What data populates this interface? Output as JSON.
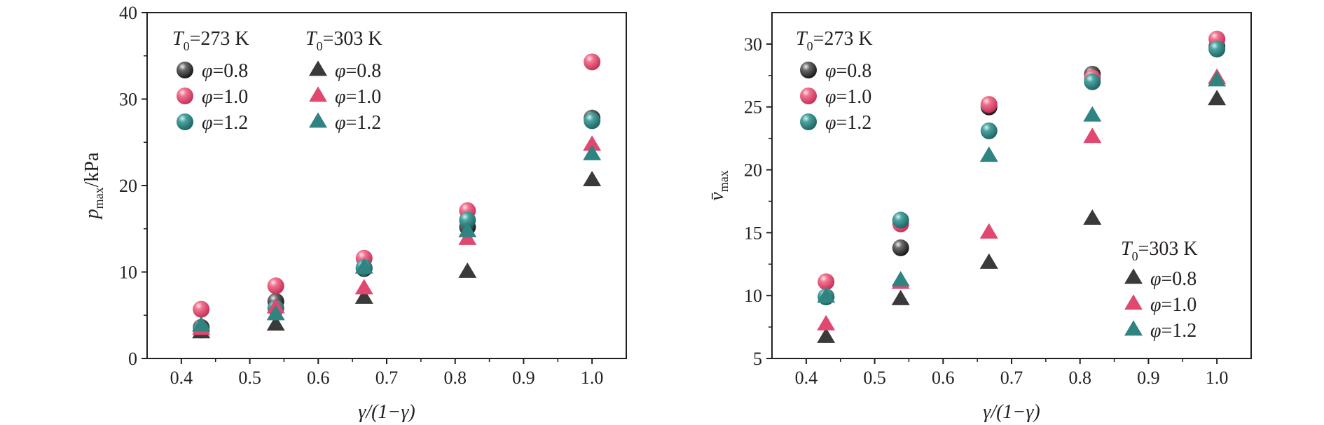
{
  "chart_data": [
    {
      "type": "scatter",
      "xlabel": "γ/(1−γ)",
      "ylabel_main": "p",
      "ylabel_sub": "max",
      "ylabel_rest": "/kPa",
      "xlim": [
        0.35,
        1.05
      ],
      "ylim": [
        0,
        40
      ],
      "xticks": [
        "0.4",
        "0.5",
        "0.6",
        "0.7",
        "0.8",
        "0.9",
        "1.0"
      ],
      "yticks": [
        "0",
        "10",
        "20",
        "30",
        "40"
      ],
      "legend_t273": {
        "T_main": "T",
        "T_sub": "0",
        "T_rest": "=273 K"
      },
      "legend_t303": {
        "T_main": "T",
        "T_sub": "0",
        "T_rest": "=303 K"
      },
      "x": [
        0.429,
        0.538,
        0.667,
        0.818,
        1.0
      ],
      "series": [
        {
          "name": "φ=0.8",
          "group": "273 K",
          "marker": "circle",
          "color": "#2b2b2b",
          "values": [
            3.6,
            6.6,
            10.4,
            15.2,
            27.8
          ]
        },
        {
          "name": "φ=1.0",
          "group": "273 K",
          "marker": "circle",
          "color": "#e0486f",
          "values": [
            5.7,
            8.4,
            11.6,
            17.1,
            34.3
          ]
        },
        {
          "name": "φ=1.2",
          "group": "273 K",
          "marker": "circle",
          "color": "#2f8482",
          "values": [
            3.3,
            5.8,
            10.5,
            16.0,
            27.5
          ]
        },
        {
          "name": "φ=0.8",
          "group": "303 K",
          "marker": "triangle",
          "color": "#3a3a3a",
          "values": [
            3.0,
            3.9,
            7.0,
            10.0,
            20.6
          ]
        },
        {
          "name": "φ=1.0",
          "group": "303 K",
          "marker": "triangle",
          "color": "#e0486f",
          "values": [
            3.4,
            5.9,
            8.1,
            13.8,
            24.7
          ]
        },
        {
          "name": "φ=1.2",
          "group": "303 K",
          "marker": "triangle",
          "color": "#2f8482",
          "values": [
            3.8,
            5.1,
            10.5,
            14.7,
            23.6
          ]
        }
      ]
    },
    {
      "type": "scatter",
      "xlabel": "γ/(1−γ)",
      "ylabel_main": "v̄",
      "ylabel_sub": "max",
      "xlim": [
        0.35,
        1.05
      ],
      "ylim": [
        5,
        32.5
      ],
      "xticks": [
        "0.4",
        "0.5",
        "0.6",
        "0.7",
        "0.8",
        "0.9",
        "1.0"
      ],
      "yticks": [
        "5",
        "10",
        "15",
        "20",
        "25",
        "30"
      ],
      "legend_t273": {
        "T_main": "T",
        "T_sub": "0",
        "T_rest": "=273 K"
      },
      "legend_t303": {
        "T_main": "T",
        "T_sub": "0",
        "T_rest": "=303 K"
      },
      "x": [
        0.429,
        0.538,
        0.667,
        0.818,
        1.0
      ],
      "series": [
        {
          "name": "φ=0.8",
          "group": "273 K",
          "marker": "circle",
          "color": "#2b2b2b",
          "values": [
            9.9,
            13.8,
            25.0,
            27.6,
            29.8
          ]
        },
        {
          "name": "φ=1.0",
          "group": "273 K",
          "marker": "circle",
          "color": "#e0486f",
          "values": [
            11.1,
            15.7,
            25.2,
            27.3,
            30.4
          ]
        },
        {
          "name": "φ=1.2",
          "group": "273 K",
          "marker": "circle",
          "color": "#2f8482",
          "values": [
            9.9,
            16.0,
            23.1,
            27.0,
            29.6
          ]
        },
        {
          "name": "φ=0.8",
          "group": "303 K",
          "marker": "triangle",
          "color": "#3a3a3a",
          "values": [
            6.7,
            9.7,
            12.6,
            16.1,
            25.6
          ]
        },
        {
          "name": "φ=1.0",
          "group": "303 K",
          "marker": "triangle",
          "color": "#e0486f",
          "values": [
            7.7,
            11.0,
            15.0,
            22.6,
            27.3
          ]
        },
        {
          "name": "φ=1.2",
          "group": "303 K",
          "marker": "triangle",
          "color": "#2f8482",
          "values": [
            9.9,
            11.2,
            21.1,
            24.3,
            27.1
          ]
        }
      ]
    }
  ]
}
